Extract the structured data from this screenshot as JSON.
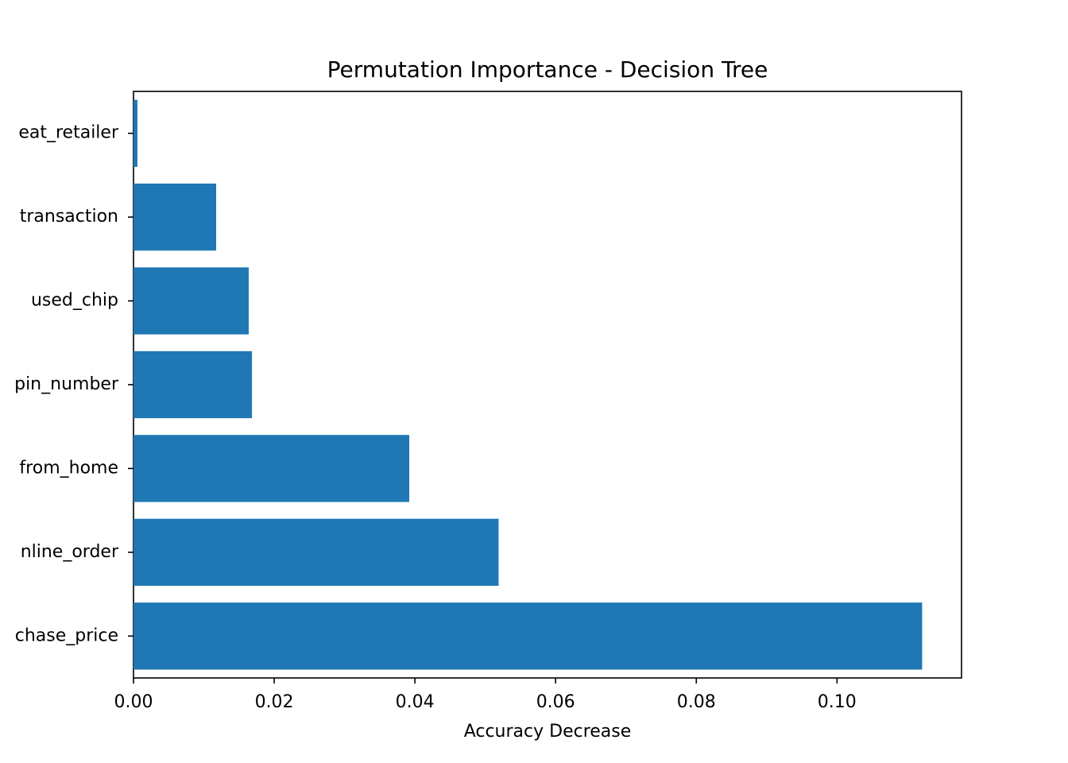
{
  "chart_data": {
    "type": "barh",
    "title": "Permutation Importance - Decision Tree",
    "xlabel": "Accuracy Decrease",
    "categories": [
      "eat_retailer",
      "transaction",
      "used_chip",
      "pin_number",
      "from_home",
      "nline_order",
      "chase_price"
    ],
    "values": [
      0.00056,
      0.01175,
      0.01638,
      0.01684,
      0.0392,
      0.0519,
      0.1121
    ],
    "color": "#1f77b4",
    "xlim": [
      0,
      0.1177
    ],
    "xticks": [
      {
        "value": 0,
        "label": "0.00"
      },
      {
        "value": 0.02,
        "label": "0.02"
      },
      {
        "value": 0.04,
        "label": "0.04"
      },
      {
        "value": 0.06,
        "label": "0.06"
      },
      {
        "value": 0.08,
        "label": "0.08"
      },
      {
        "value": 0.1,
        "label": "0.10"
      }
    ],
    "grid": false
  }
}
